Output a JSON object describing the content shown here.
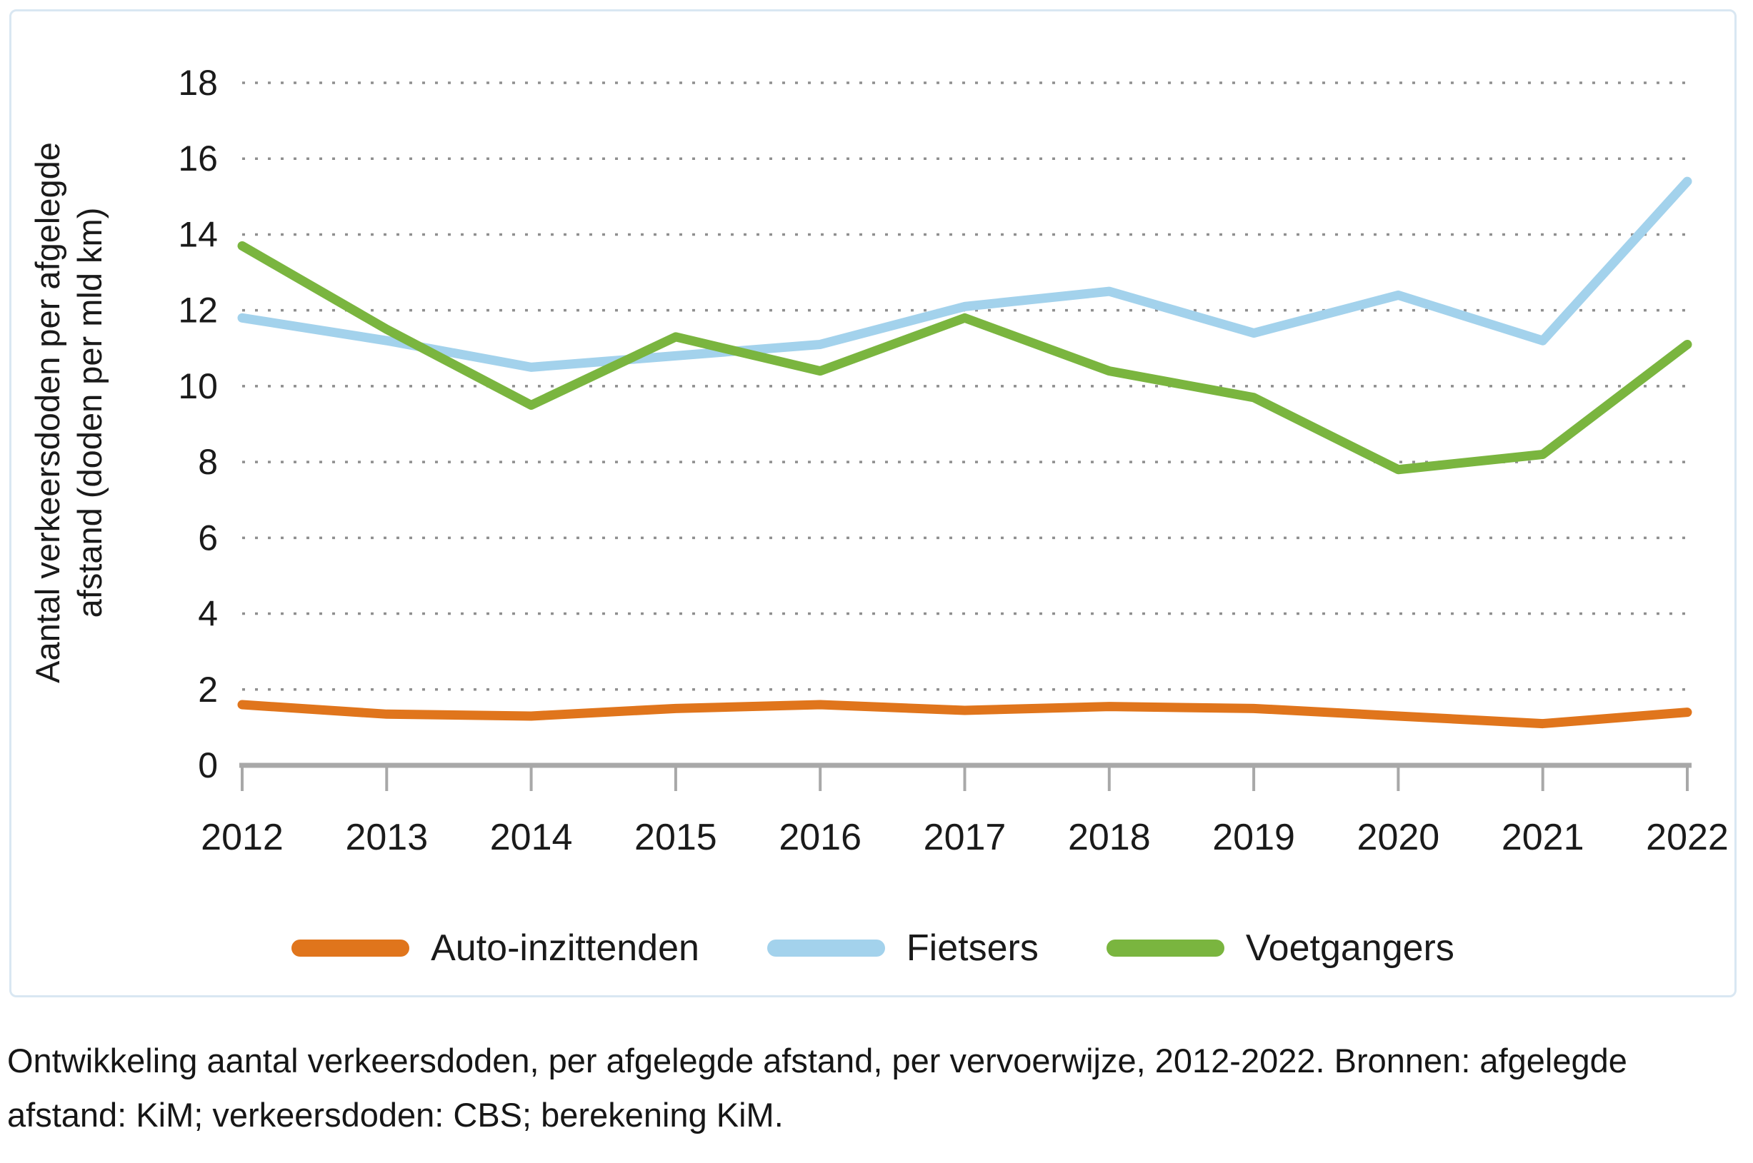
{
  "figure": {
    "caption": "Ontwikkeling aantal verkeersdoden, per afgelegde afstand, per vervoerwijze, 2012-2022. Bronnen: afgelegde afstand: KiM; verkeersdoden: CBS; berekening KiM.",
    "y_axis_title_lines": [
      "Aantal verkeersdoden per afgelegde",
      "afstand (doden per mld km)"
    ]
  },
  "colors": {
    "auto_inzittenden": "#e0751c",
    "fietsers": "#a3d2ec",
    "voetgangers": "#7ab53f",
    "axis_line": "#a8a8a8",
    "gridline": "#8f8f8f",
    "card_border": "#d9e7f2",
    "text": "#1a1a1a"
  },
  "chart_data": {
    "type": "line",
    "title": "",
    "xlabel": "",
    "ylabel": "Aantal verkeersdoden per afgelegde afstand (doden per mld km)",
    "x": [
      2012,
      2013,
      2014,
      2015,
      2016,
      2017,
      2018,
      2019,
      2020,
      2021,
      2022
    ],
    "xtick_labels": [
      "2012",
      "2013",
      "2014",
      "2015",
      "2016",
      "2017",
      "2018",
      "2019",
      "2020",
      "2021",
      "2022"
    ],
    "ylim": [
      0,
      18
    ],
    "yticks": [
      0,
      2,
      4,
      6,
      8,
      10,
      12,
      14,
      16,
      18
    ],
    "grid": "horizontal-dotted",
    "legend_position": "bottom-center",
    "series": [
      {
        "name": "Auto-inzittenden",
        "key": "auto-inzittenden",
        "color": "#e0751c",
        "values": [
          1.6,
          1.35,
          1.3,
          1.5,
          1.6,
          1.45,
          1.55,
          1.5,
          1.3,
          1.1,
          1.4
        ]
      },
      {
        "name": "Fietsers",
        "key": "fietsers",
        "color": "#a3d2ec",
        "values": [
          11.8,
          11.2,
          10.5,
          10.8,
          11.1,
          12.1,
          12.5,
          11.4,
          12.4,
          11.2,
          15.4
        ]
      },
      {
        "name": "Voetgangers",
        "key": "voetgangers",
        "color": "#7ab53f",
        "values": [
          13.7,
          11.5,
          9.5,
          11.3,
          10.4,
          11.8,
          10.4,
          9.7,
          7.8,
          8.2,
          11.1
        ]
      }
    ]
  }
}
